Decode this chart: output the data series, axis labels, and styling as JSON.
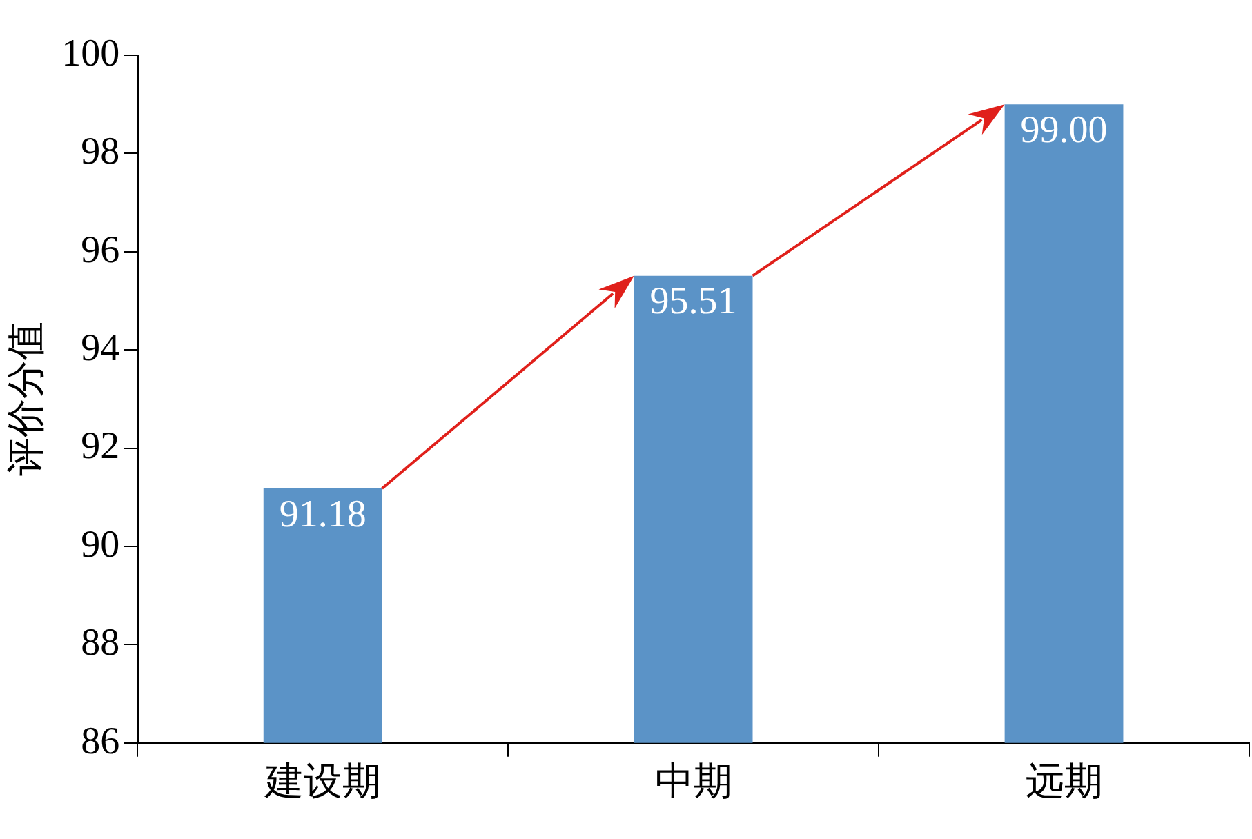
{
  "chart_data": {
    "type": "bar",
    "ylabel": "评价分值",
    "categories": [
      "建设期",
      "中期",
      "远期"
    ],
    "values": [
      91.18,
      95.51,
      99.0
    ],
    "value_labels": [
      "91.18",
      "95.51",
      "99.00"
    ],
    "color": "#5b93c7",
    "ylim": [
      86,
      100
    ],
    "yticks": [
      86,
      88,
      90,
      92,
      94,
      96,
      98,
      100
    ],
    "grid": false,
    "legend": false
  }
}
